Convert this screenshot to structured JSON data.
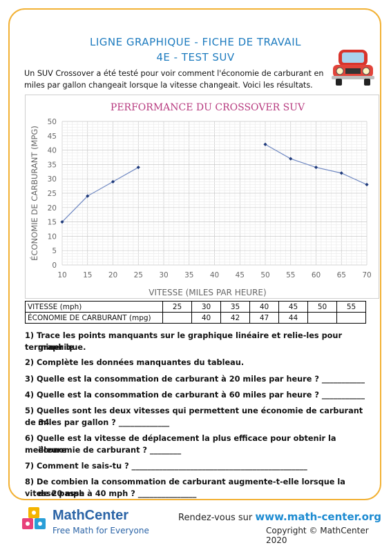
{
  "header": {
    "title_line1": "LIGNE GRAPHIQUE - FICHE DE TRAVAIL",
    "title_line2": "4E - TEST SUV"
  },
  "intro": "Un SUV Crossover a été testé pour voir comment l'économie de carburant en miles par gallon changeait lorsque la vitesse changeait. Voici les résultats.",
  "chart_data": {
    "type": "line",
    "title": "PERFORMANCE DU CROSSOVER SUV",
    "xlabel": "VITESSE (MILES PAR HEURE)",
    "ylabel": "ÉCONOMIE DE CARBURANT (MPG)",
    "x_ticks": [
      10,
      15,
      20,
      25,
      30,
      35,
      40,
      45,
      50,
      55,
      60,
      65,
      70
    ],
    "y_ticks": [
      0,
      5,
      10,
      15,
      20,
      25,
      30,
      35,
      40,
      45,
      50
    ],
    "xlim": [
      10,
      70
    ],
    "ylim": [
      0,
      50
    ],
    "grid": true,
    "series": [
      {
        "points": [
          [
            10,
            15
          ],
          [
            15,
            24
          ],
          [
            20,
            29
          ],
          [
            25,
            34
          ]
        ]
      },
      {
        "points": [
          [
            50,
            42
          ],
          [
            55,
            37
          ],
          [
            60,
            34
          ],
          [
            65,
            32
          ],
          [
            70,
            28
          ]
        ]
      }
    ],
    "colors": {
      "line": "#6f88c2",
      "marker": "#1f3a7a",
      "title": "#b73a7f",
      "axis_text": "#666666"
    }
  },
  "table": {
    "row1_label": "VITESSE (mph)",
    "row1": [
      "25",
      "30",
      "35",
      "40",
      "45",
      "50",
      "55"
    ],
    "row2_label": "ÉCONOMIE DE CARBURANT (mpg)",
    "row2": [
      "",
      "40",
      "42",
      "47",
      "44",
      "",
      ""
    ]
  },
  "questions": [
    "1)  Trace les points manquants sur le graphique linéaire et relie-les pour terminer le",
    "graphique.",
    "2) Complète les données manquantes du tableau.",
    "3) Quelle est la consommation de carburant à 20 miles par heure ? ___________",
    "4) Quelle est la consommation de carburant à 60 miles par heure ? ___________",
    "5) Quelles sont les deux vitesses qui permettent une économie de carburant de 34",
    "miles par gallon ? _____________",
    "6) Quelle est la vitesse de déplacement la plus efficace pour obtenir la meilleure",
    "économie de carburant ? ________",
    "7) Comment le sais-tu ? _____________________________________________",
    "8) De combien la consommation de carburant augmente-t-elle lorsque la vitesse passe",
    "de 20 mph à 40 mph ? _______________"
  ],
  "footer": {
    "brand": "MathCenter",
    "tagline": "Free Math for Everyone",
    "rendez": "Rendez-vous sur",
    "url": "www.math-center.org",
    "copyright": "Copyright © MathCenter 2020"
  }
}
